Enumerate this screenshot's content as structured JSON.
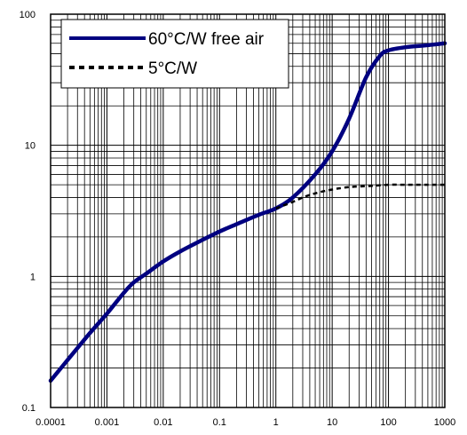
{
  "chart_data": {
    "type": "line",
    "x_scale": "log",
    "y_scale": "log",
    "xlim": [
      0.0001,
      1000
    ],
    "ylim": [
      0.1,
      100
    ],
    "x_ticks": [
      "0.0001",
      "0.001",
      "0.01",
      "0.1",
      "1",
      "10",
      "100",
      "1000"
    ],
    "y_ticks": [
      "0.1",
      "1",
      "10",
      "100"
    ],
    "grid": true,
    "legend_position": "top-left",
    "series": [
      {
        "name": "60°C/W free air",
        "style": "solid",
        "color": "#000080",
        "x": [
          0.0001,
          0.0002,
          0.0005,
          0.001,
          0.002,
          0.003,
          0.005,
          0.01,
          0.02,
          0.05,
          0.1,
          0.2,
          0.5,
          1,
          2,
          5,
          10,
          20,
          40,
          70,
          100,
          200,
          500,
          1000
        ],
        "y": [
          0.16,
          0.23,
          0.37,
          0.52,
          0.75,
          0.9,
          1.05,
          1.3,
          1.55,
          1.9,
          2.2,
          2.5,
          2.95,
          3.3,
          4.0,
          6.0,
          9.0,
          16,
          33,
          48,
          53,
          56,
          58,
          60
        ]
      },
      {
        "name": "5°C/W",
        "style": "dashed",
        "color": "#000000",
        "x": [
          1,
          2,
          3,
          5,
          10,
          20,
          50,
          100,
          200,
          500,
          1000
        ],
        "y": [
          3.3,
          3.7,
          4.0,
          4.3,
          4.6,
          4.8,
          4.9,
          5.0,
          5.0,
          5.0,
          5.0
        ]
      }
    ]
  }
}
